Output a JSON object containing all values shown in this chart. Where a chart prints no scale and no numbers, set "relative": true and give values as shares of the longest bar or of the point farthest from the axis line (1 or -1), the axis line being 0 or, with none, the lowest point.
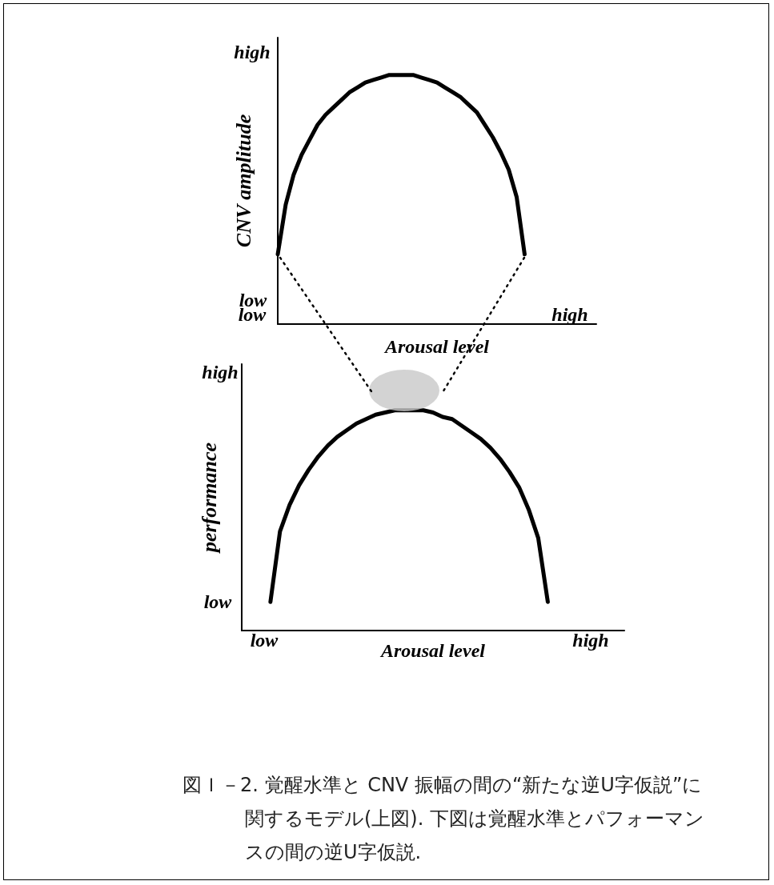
{
  "chart_data": [
    {
      "type": "line",
      "relative": true,
      "ylabel": "CNV amplitude",
      "xlabel": "Arousal level",
      "color": "#000000",
      "marker": "none",
      "line_style": "solid",
      "grid": false,
      "categories": [
        null,
        null,
        null,
        null,
        null,
        null,
        null,
        null,
        null,
        null,
        null,
        null,
        null,
        null,
        null,
        null,
        null,
        null,
        null,
        null,
        null,
        null,
        null,
        null,
        null,
        null,
        null,
        null,
        null,
        null,
        null,
        null,
        null,
        null,
        null,
        null,
        null,
        null,
        null,
        null,
        null
      ],
      "values": [
        0.28,
        0.48,
        0.6,
        0.68,
        0.74,
        0.8,
        0.84,
        0.87,
        0.9,
        0.93,
        0.95,
        0.97,
        0.98,
        0.99,
        1,
        1,
        1,
        1,
        0.99,
        0.98,
        0.97,
        0.95,
        0.93,
        0.91,
        0.88,
        0.85,
        0.8,
        0.75,
        0.69,
        0.62,
        0.51,
        0.28,
        null,
        null,
        null,
        null,
        null,
        null,
        null,
        null,
        null
      ],
      "annotations": [
        "high",
        "low",
        "low",
        "high"
      ]
    },
    {
      "type": "line",
      "relative": true,
      "ylabel": "performance",
      "xlabel": "Arousal level",
      "color": "#000000",
      "marker": "none",
      "line_style": "solid",
      "grid": false,
      "categories": [
        null,
        null,
        null,
        null,
        null,
        null,
        null,
        null,
        null,
        null,
        null,
        null,
        null,
        null,
        null,
        null,
        null,
        null,
        null,
        null,
        null,
        null,
        null,
        null,
        null,
        null,
        null,
        null,
        null,
        null,
        null,
        null,
        null,
        null,
        null,
        null,
        null,
        null,
        null,
        null,
        null
      ],
      "values": [
        null,
        null,
        null,
        0.13,
        0.45,
        0.57,
        0.66,
        0.73,
        0.79,
        0.84,
        0.88,
        0.91,
        0.94,
        0.96,
        0.98,
        0.99,
        1,
        1,
        1,
        1,
        0.99,
        0.97,
        0.96,
        0.93,
        0.9,
        0.87,
        0.83,
        0.78,
        0.72,
        0.65,
        0.55,
        0.42,
        0.13,
        null,
        null,
        null,
        null,
        null,
        null,
        null,
        null
      ],
      "annotations": [
        "high",
        "low",
        "low",
        "high",
        "図Ｉ－2. 覚醒水準と CNV 振幅の間の“新たな逆U字仮説”に関するモデル(上図). 下図は覚醒水準とパフォーマンスの間の逆U字仮説."
      ]
    }
  ]
}
